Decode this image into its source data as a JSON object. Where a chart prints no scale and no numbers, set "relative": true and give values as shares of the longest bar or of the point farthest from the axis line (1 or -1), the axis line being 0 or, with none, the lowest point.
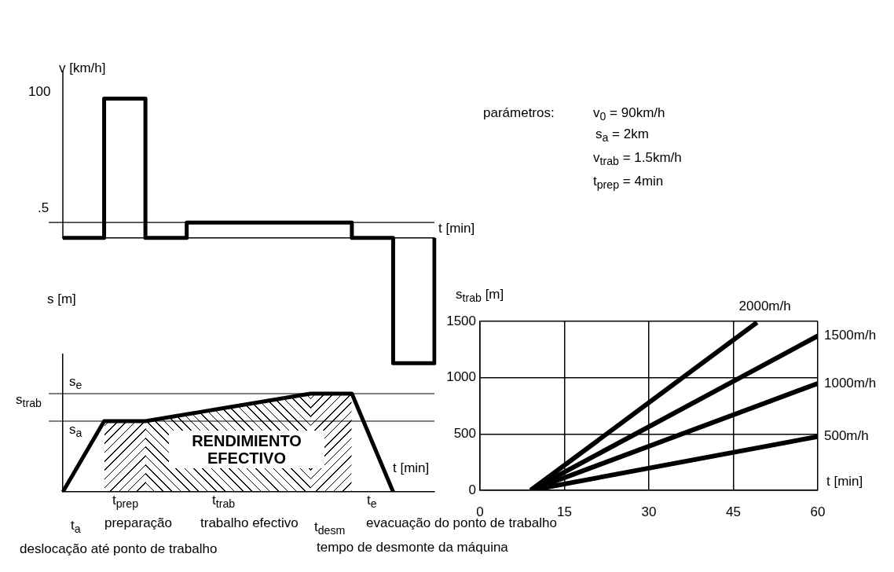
{
  "chart_data": [
    {
      "type": "step",
      "relative": true,
      "xlabel": "t [min]",
      "ylabel": "v [km/h]",
      "categories": [
        null,
        null,
        null,
        null,
        null,
        null,
        null,
        null,
        null,
        null
      ],
      "values": [
        0,
        1,
        0,
        0.11,
        0.11,
        0.11,
        0.11,
        0,
        -0.9,
        0
      ],
      "color": "#000000",
      "tick_labels": false,
      "grid": false,
      "ref_lines": [
        {
          "axis": "y",
          "value": 0.11
        }
      ],
      "annotations": [
        "100",
        ".5",
        "parámetros:",
        "v$_{0}$ = 90km/h",
        "s$_{a}$ = 2km",
        "v$_{trab}$ = 1.5km/h",
        "t$_{prep}$ = 4min"
      ]
    },
    {
      "type": "line",
      "relative": true,
      "xlabel": "t [min]",
      "ylabel": "s [m]",
      "categories": [
        null,
        null,
        null,
        null,
        null,
        null,
        null,
        null,
        null,
        null
      ],
      "values": [
        0,
        0.72,
        0.72,
        0.79,
        0.86,
        0.93,
        1,
        1,
        0,
        null
      ],
      "color": "#000000",
      "tick_labels": false,
      "grid": false,
      "ref_lines": [
        {
          "axis": "y",
          "value": 1,
          "label": "s$_{e}$"
        },
        {
          "axis": "y",
          "value": 0.72,
          "label": "s$_{a}$"
        }
      ],
      "annotations": [
        "s$_{trab}$",
        "RENDIMIENTO EFECTIVO",
        "t$_{a}$",
        "t$_{prep}$",
        "t$_{trab}$",
        "t$_{desm}$",
        "t$_{e}$",
        "deslocação até ponto de trabalho",
        "preparação",
        "trabalho efectivo",
        "tempo de desmonte da máquina",
        "evacuação do ponto de trabalho"
      ]
    },
    {
      "type": "line",
      "xlabel": "t [min]",
      "ylabel": "s$_{trab}$ [m]",
      "xlim": [
        0,
        60
      ],
      "xticks": [
        0,
        15,
        30,
        45,
        60
      ],
      "ylim": [
        0,
        1500
      ],
      "yticks": [
        0,
        500,
        1000,
        1500
      ],
      "grid": true,
      "series": [
        {
          "name": "2000m/h",
          "color": "#000000",
          "x": [
            9,
            49.2
          ],
          "values": [
            0,
            1490
          ]
        },
        {
          "name": "1500m/h",
          "color": "#000000",
          "x": [
            9,
            60
          ],
          "values": [
            0,
            1371
          ]
        },
        {
          "name": "1000m/h",
          "color": "#000000",
          "x": [
            9,
            60
          ],
          "values": [
            0,
            949
          ]
        },
        {
          "name": "500m/h",
          "color": "#000000",
          "x": [
            9,
            60
          ],
          "values": [
            0,
            477
          ]
        }
      ]
    }
  ]
}
